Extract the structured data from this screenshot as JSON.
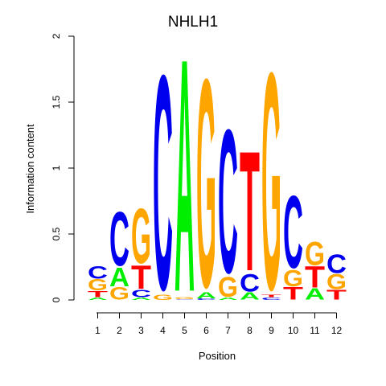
{
  "chart_data": {
    "type": "sequence-logo",
    "title": "NHLH1",
    "xlabel": "Position",
    "ylabel": "Information content",
    "ylim": [
      0,
      2
    ],
    "yticks": [
      "0",
      "0.5",
      "1",
      "1.5",
      "2"
    ],
    "positions": [
      "1",
      "2",
      "3",
      "4",
      "5",
      "6",
      "7",
      "8",
      "9",
      "10",
      "11",
      "12"
    ],
    "colors": {
      "A": "#00EE00",
      "C": "#0000EE",
      "G": "#FFA500",
      "T": "#FF0000"
    },
    "columns": [
      [
        [
          "A",
          0.02
        ],
        [
          "T",
          0.05
        ],
        [
          "G",
          0.09
        ],
        [
          "C",
          0.1
        ]
      ],
      [
        [
          "G",
          0.1
        ],
        [
          "A",
          0.15
        ],
        [
          "C",
          0.43
        ]
      ],
      [
        [
          "A",
          0.02
        ],
        [
          "C",
          0.06
        ],
        [
          "T",
          0.19
        ],
        [
          "G",
          0.44
        ]
      ],
      [
        [
          "G",
          0.04
        ],
        [
          "C",
          1.72
        ]
      ],
      [
        [
          "C",
          0.005
        ],
        [
          "G",
          0.015
        ],
        [
          "A",
          1.87
        ]
      ],
      [
        [
          "C",
          0.01
        ],
        [
          "A",
          0.05
        ],
        [
          "G",
          1.67
        ]
      ],
      [
        [
          "A",
          0.02
        ],
        [
          "G",
          0.16
        ],
        [
          "C",
          1.15
        ]
      ],
      [
        [
          "A",
          0.06
        ],
        [
          "C",
          0.14
        ],
        [
          "T",
          0.96
        ]
      ],
      [
        [
          "C",
          0.02
        ],
        [
          "T",
          0.02
        ],
        [
          "G",
          1.74
        ]
      ],
      [
        [
          "T",
          0.1
        ],
        [
          "G",
          0.13
        ],
        [
          "C",
          0.58
        ]
      ],
      [
        [
          "A",
          0.09
        ],
        [
          "T",
          0.17
        ],
        [
          "G",
          0.19
        ]
      ],
      [
        [
          "T",
          0.08
        ],
        [
          "G",
          0.12
        ],
        [
          "C",
          0.15
        ]
      ]
    ]
  }
}
